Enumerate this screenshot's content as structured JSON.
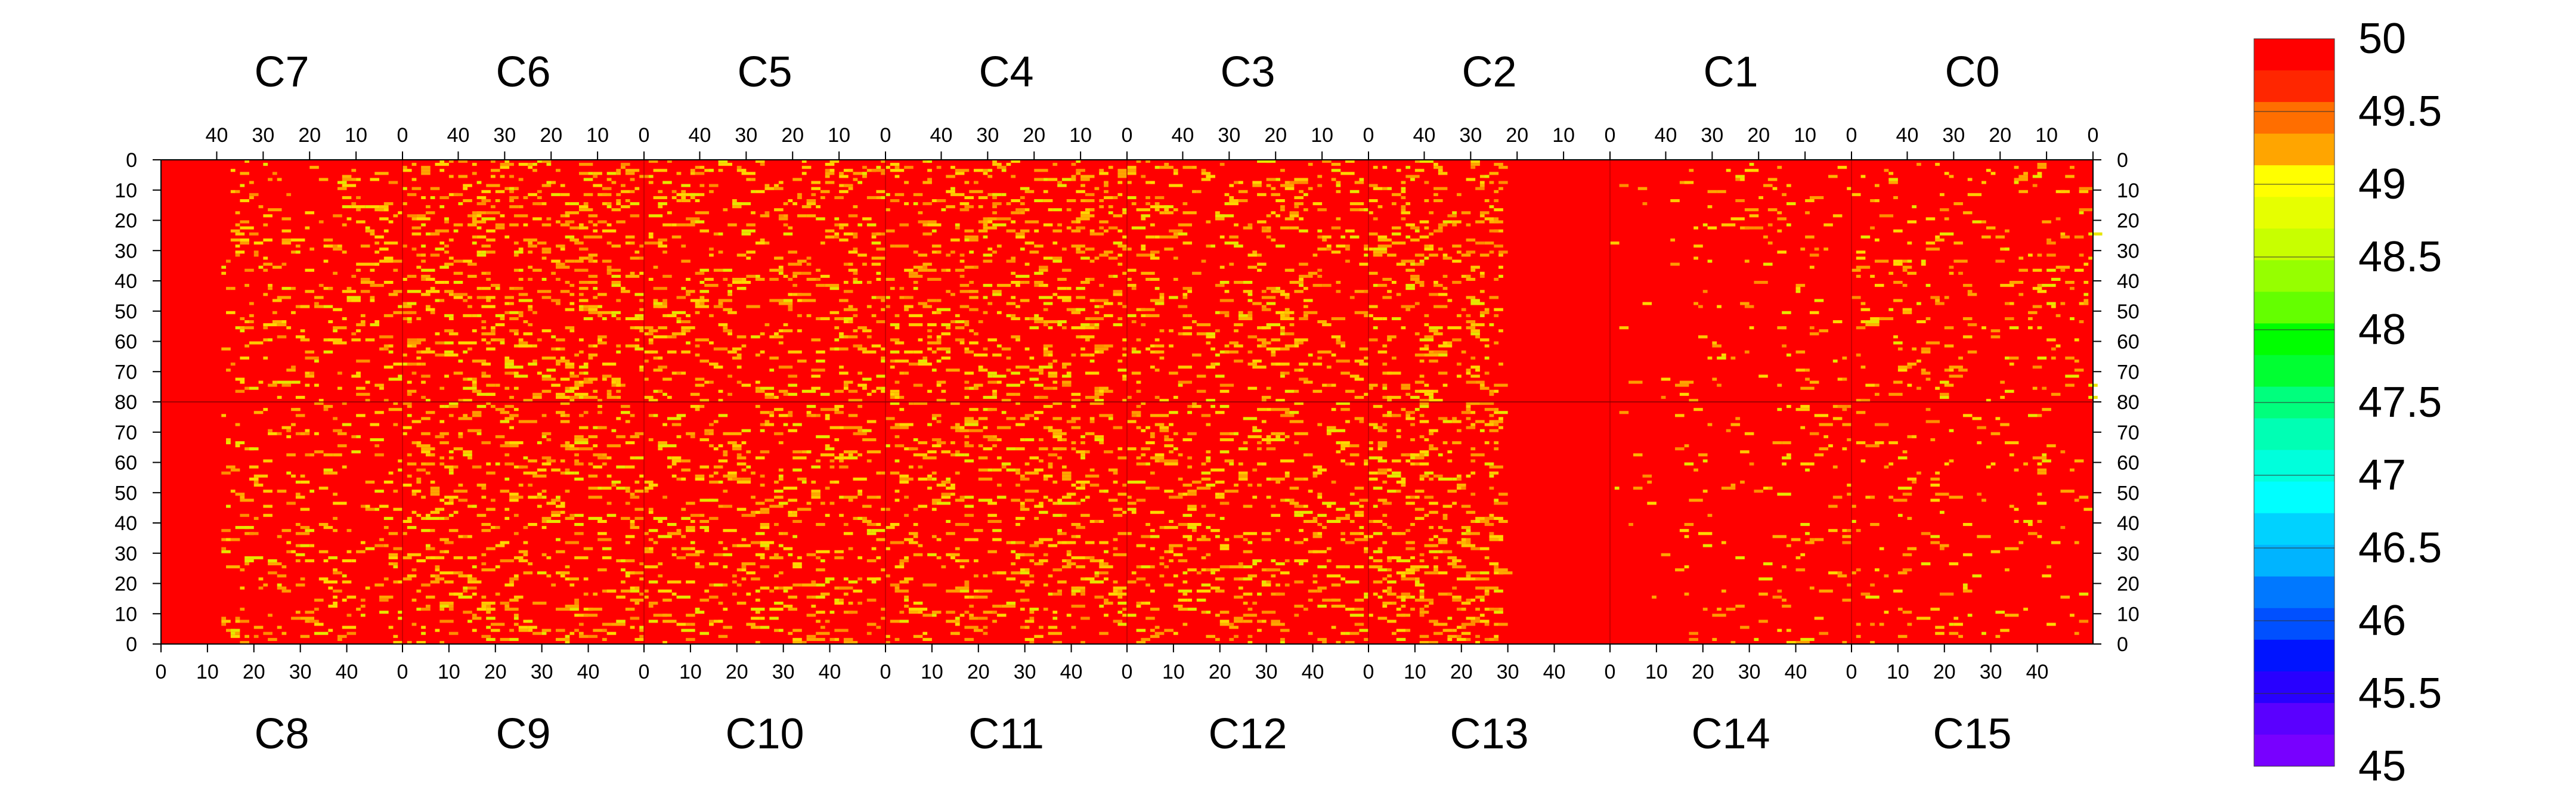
{
  "chart_data": {
    "type": "heatmap",
    "title": "",
    "chip_labels_top": [
      "C7",
      "C6",
      "C5",
      "C4",
      "C3",
      "C2",
      "C1",
      "C0"
    ],
    "chip_labels_bottom": [
      "C8",
      "C9",
      "C10",
      "C11",
      "C12",
      "C13",
      "C14",
      "C15"
    ],
    "top_x_ticks": [
      "40",
      "30",
      "20",
      "10",
      "0"
    ],
    "bottom_x_ticks": [
      "0",
      "10",
      "20",
      "30",
      "40"
    ],
    "y_ticks_top_half": [
      "0",
      "10",
      "20",
      "30",
      "40",
      "50",
      "60",
      "70",
      "80"
    ],
    "y_ticks_bottom_half": [
      "70",
      "60",
      "50",
      "40",
      "30",
      "20",
      "10",
      "0"
    ],
    "columns_per_chip": 52,
    "rows_per_half": 80,
    "zlim": [
      45,
      50
    ],
    "baseline_value": 50,
    "deviation_fraction_per_chip": {
      "C7": 0.06,
      "C6": 0.13,
      "C5": 0.11,
      "C4": 0.12,
      "C3": 0.1,
      "C2": 0.08,
      "C1": 0.035,
      "C0": 0.05,
      "C8": 0.055,
      "C9": 0.11,
      "C10": 0.1,
      "C11": 0.11,
      "C12": 0.1,
      "C13": 0.09,
      "C14": 0.03,
      "C15": 0.04
    },
    "typical_deviation_value": 49,
    "colorbar": {
      "ticks": [
        "50",
        "49.5",
        "49",
        "48.5",
        "48",
        "47.5",
        "47",
        "46.5",
        "46",
        "45.5",
        "45"
      ],
      "levels": [
        50,
        49.5,
        49,
        48.5,
        48,
        47.5,
        47,
        46.5,
        46,
        45.5,
        45
      ],
      "colors": [
        "#ff0000",
        "#ff2600",
        "#ff6e00",
        "#ffa500",
        "#ffff00",
        "#e6ff00",
        "#c8ff00",
        "#96ff00",
        "#64ff00",
        "#00ff00",
        "#00ff32",
        "#00ff7d",
        "#00ffb4",
        "#00ffdc",
        "#00ffff",
        "#00d2ff",
        "#00b4ff",
        "#0078ff",
        "#0050ff",
        "#0014ff",
        "#2800ff",
        "#5a00ff",
        "#7800ff"
      ]
    }
  }
}
